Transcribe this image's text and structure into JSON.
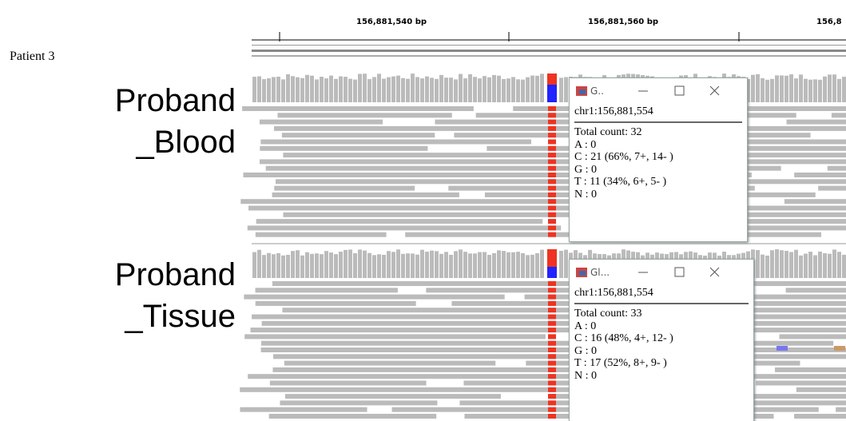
{
  "header": {
    "label": "Patient 3"
  },
  "ruler": {
    "ticks": [
      "156,881,540 bp",
      "156,881,560 bp",
      "156,8"
    ]
  },
  "tracks": [
    {
      "name_lines": [
        "Proband",
        "_Blood"
      ],
      "popup": {
        "title": "G..",
        "locus": "chr1:156,881,554",
        "lines": [
          "Total count: 32",
          "A : 0",
          "C : 21 (66%, 7+, 14- )",
          "G : 0",
          "T : 11 (34%, 6+, 5- )",
          "N : 0"
        ]
      }
    },
    {
      "name_lines": [
        "Proband",
        "_Tissue"
      ],
      "popup": {
        "title": "Gl...",
        "locus": "chr1:156,881,554",
        "lines": [
          "Total count: 33",
          "A : 0",
          "C : 16 (48%, 4+, 12- )",
          "G : 0",
          "T : 17 (52%, 8+, 9- )",
          "N : 0"
        ]
      }
    }
  ]
}
